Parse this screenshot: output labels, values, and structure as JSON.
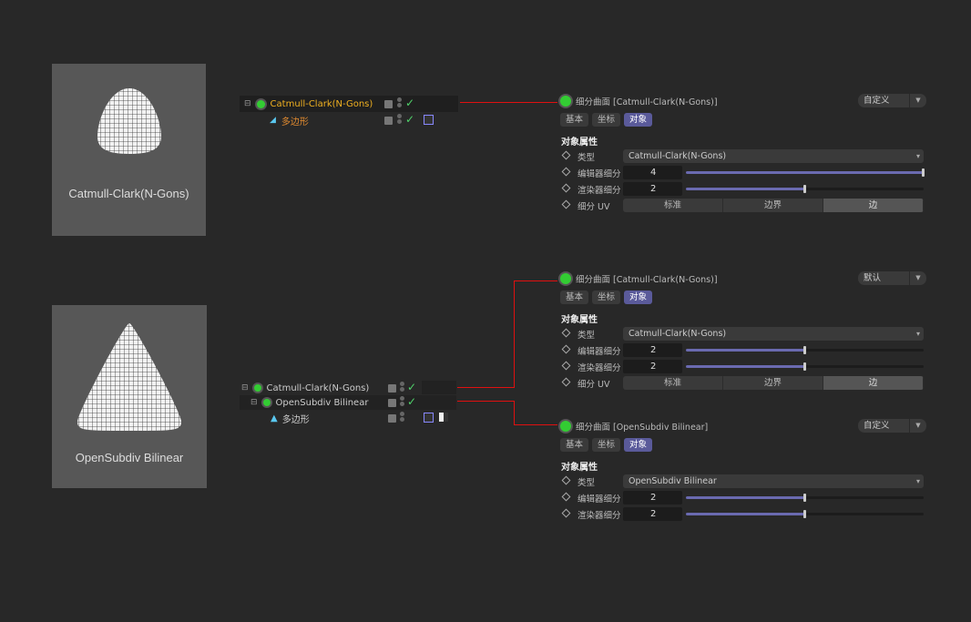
{
  "thumbnails": [
    {
      "caption": "Catmull-Clark(N-Gons)",
      "shape": "egg"
    },
    {
      "caption": "OpenSubdiv Bilinear",
      "shape": "triangle"
    }
  ],
  "tree1": [
    {
      "label": "Catmull-Clark(N-Gons)",
      "color": "#f0b020",
      "icon": "subdivision-icon"
    },
    {
      "label": "多边形",
      "color": "#e08a30",
      "icon": "polygon-icon"
    }
  ],
  "tree2": [
    {
      "label": "Catmull-Clark(N-Gons)",
      "color": "#ccc",
      "icon": "subdivision-icon"
    },
    {
      "label": "OpenSubdiv Bilinear",
      "color": "#ccc",
      "icon": "subdivision-icon"
    },
    {
      "label": "多边形",
      "color": "#ccc",
      "icon": "polygon-icon"
    }
  ],
  "panels": [
    {
      "title": "细分曲面 [Catmull-Clark(N-Gons)]",
      "preset": "自定义",
      "tabs": [
        "基本",
        "坐标",
        "对象"
      ],
      "active_tab": 2,
      "section": "对象属性",
      "rows": [
        {
          "label": "类型",
          "type": "dropdown",
          "value": "Catmull-Clark(N-Gons)"
        },
        {
          "label": "编辑器细分",
          "type": "slider",
          "value": "4",
          "fraction": 1.0
        },
        {
          "label": "渲染器细分",
          "type": "slider",
          "value": "2",
          "fraction": 0.5
        },
        {
          "label": "细分 UV",
          "type": "segmented",
          "options": [
            "标准",
            "边界",
            "边"
          ],
          "selected": 2
        }
      ]
    },
    {
      "title": "细分曲面 [Catmull-Clark(N-Gons)]",
      "preset": "默认",
      "tabs": [
        "基本",
        "坐标",
        "对象"
      ],
      "active_tab": 2,
      "section": "对象属性",
      "rows": [
        {
          "label": "类型",
          "type": "dropdown",
          "value": "Catmull-Clark(N-Gons)"
        },
        {
          "label": "编辑器细分",
          "type": "slider",
          "value": "2",
          "fraction": 0.5
        },
        {
          "label": "渲染器细分",
          "type": "slider",
          "value": "2",
          "fraction": 0.5
        },
        {
          "label": "细分 UV",
          "type": "segmented",
          "options": [
            "标准",
            "边界",
            "边"
          ],
          "selected": 2
        }
      ]
    },
    {
      "title": "细分曲面 [OpenSubdiv Bilinear]",
      "preset": "自定义",
      "tabs": [
        "基本",
        "坐标",
        "对象"
      ],
      "active_tab": 2,
      "section": "对象属性",
      "rows": [
        {
          "label": "类型",
          "type": "dropdown",
          "value": "OpenSubdiv Bilinear"
        },
        {
          "label": "编辑器细分",
          "type": "slider",
          "value": "2",
          "fraction": 0.5
        },
        {
          "label": "渲染器细分",
          "type": "slider",
          "value": "2",
          "fraction": 0.5
        }
      ]
    }
  ]
}
